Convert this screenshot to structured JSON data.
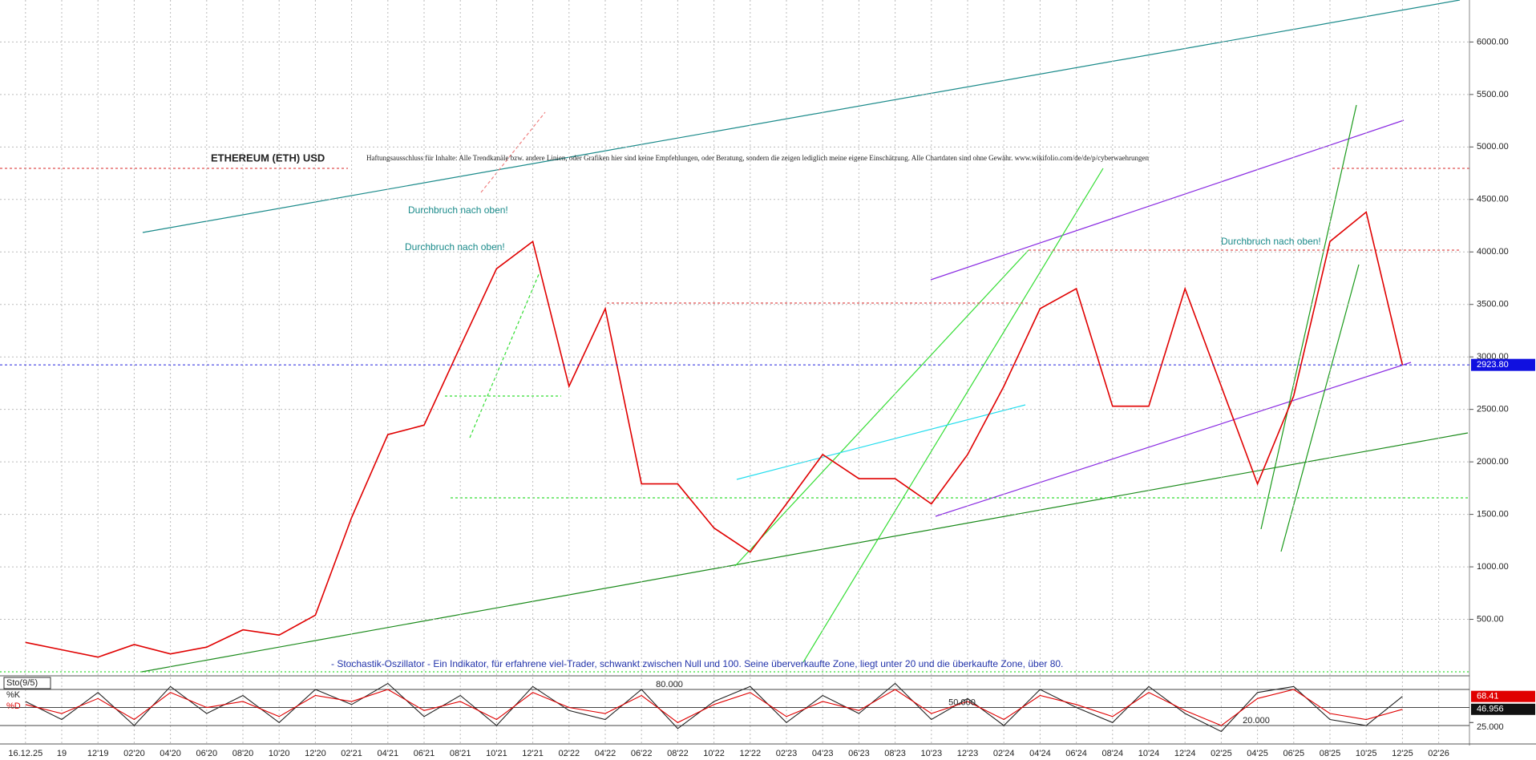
{
  "chart_data": [
    {
      "type": "line",
      "title": "ETHEREUM (ETH) USD",
      "subtitle": "Haftungsausschluss für Inhalte: Alle Trendkanäle bzw. andere Linien, oder Grafiken hier sind keine Empfehlungen, oder Beratung, sondern die zeigen lediglich meine eigene Einschätzung. Alle Chartdaten sind ohne Gewähr. www.wikifolio.com/de/de/p/cyberwaehrungen",
      "annotations": [
        "Durchbruch nach oben!",
        "Durchbruch nach oben!",
        "Durchbruch nach oben!",
        "- Stochastik-Oszillator - Ein Indikator, für erfahrene viel-Trader, schwankt zwischen Null und 100. Seine überverkaufte Zone, liegt unter 20 und die überkaufte Zone, über 80."
      ],
      "categories": [
        "16.12.25",
        "19",
        "12'19",
        "02'20",
        "04'20",
        "06'20",
        "08'20",
        "10'20",
        "12'20",
        "02'21",
        "04'21",
        "06'21",
        "08'21",
        "10'21",
        "12'21",
        "02'22",
        "04'22",
        "06'22",
        "08'22",
        "10'22",
        "12'22",
        "02'23",
        "04'23",
        "06'23",
        "08'23",
        "10'23",
        "12'23",
        "02'24",
        "04'24",
        "06'24",
        "08'24",
        "10'24",
        "12'24",
        "02'25",
        "04'25",
        "06'25",
        "08'25",
        "10'25",
        "12'25",
        "02'26"
      ],
      "series": [
        {
          "color": "#e00000",
          "values": [
            280,
            210,
            140,
            260,
            170,
            235,
            400,
            350,
            540,
            1470,
            2260,
            2350,
            3100,
            3840,
            4100,
            2720,
            3460,
            1790,
            1790,
            1370,
            1140,
            1600,
            2070,
            1840,
            1840,
            1600,
            2070,
            2720,
            3460,
            3650,
            2530,
            2530,
            3650,
            2720,
            1790,
            2630,
            4100,
            4380,
            2923.8,
            null
          ]
        }
      ],
      "ylim": [
        0,
        6400
      ],
      "yticks": [
        {
          "value": 500,
          "label": "500.00"
        },
        {
          "value": 1000,
          "label": "1000.00"
        },
        {
          "value": 1500,
          "label": "1500.00"
        },
        {
          "value": 2000,
          "label": "2000.00"
        },
        {
          "value": 2500,
          "label": "2500.00"
        },
        {
          "value": 3000,
          "label": "3000.00"
        },
        {
          "value": 3500,
          "label": "3500.00"
        },
        {
          "value": 4000,
          "label": "4000.00"
        },
        {
          "value": 4500,
          "label": "4500.00"
        },
        {
          "value": 5000,
          "label": "5000.00"
        },
        {
          "value": 5500,
          "label": "5500.00"
        },
        {
          "value": 6000,
          "label": "6000.00"
        }
      ],
      "last_price": {
        "value": 2923.8,
        "label": "2923.80"
      },
      "grid": true
    },
    {
      "type": "line",
      "title": "Sto(9/5)",
      "series": [
        {
          "name": "%K",
          "color": "#222222",
          "values": [
            60,
            30,
            75,
            20,
            85,
            40,
            70,
            25,
            80,
            55,
            90,
            35,
            70,
            20,
            85,
            45,
            30,
            80,
            15,
            60,
            85,
            25,
            70,
            40,
            90,
            30,
            65,
            20,
            80,
            50,
            25,
            85,
            40,
            10,
            75,
            85,
            30,
            20,
            68.41,
            null
          ]
        },
        {
          "name": "%D",
          "color": "#e00000",
          "values": [
            55,
            40,
            65,
            30,
            75,
            50,
            60,
            35,
            70,
            60,
            80,
            45,
            60,
            30,
            75,
            50,
            40,
            70,
            25,
            55,
            75,
            35,
            60,
            45,
            80,
            40,
            60,
            30,
            70,
            55,
            35,
            75,
            45,
            20,
            65,
            80,
            40,
            30,
            46.956,
            null
          ]
        }
      ],
      "ylim": [
        0,
        100
      ],
      "yticks": [
        {
          "value": 20,
          "label": "20.000"
        },
        {
          "value": 50,
          "label": "50.000"
        },
        {
          "value": 80,
          "label": "80.000"
        }
      ],
      "right_marker": {
        "value": 25,
        "label": "25.000"
      }
    }
  ]
}
